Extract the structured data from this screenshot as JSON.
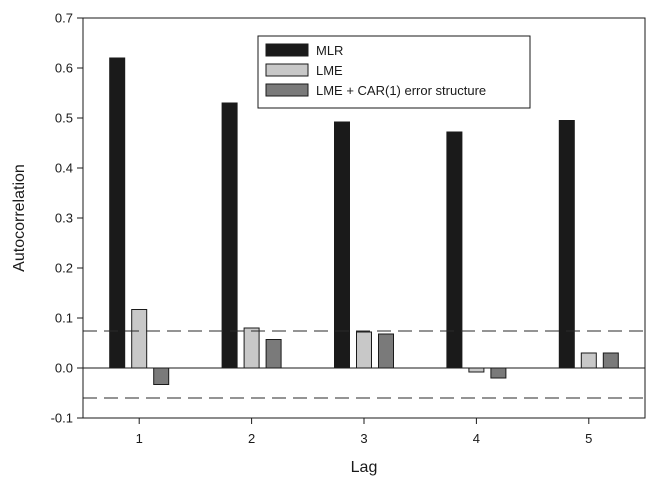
{
  "chart_data": {
    "type": "bar",
    "xlabel": "Lag",
    "ylabel": "Autocorrelation",
    "categories": [
      "1",
      "2",
      "3",
      "4",
      "5"
    ],
    "ylim": [
      -0.1,
      0.7
    ],
    "yticks": [
      "-0.1",
      "0.0",
      "0.1",
      "0.2",
      "0.3",
      "0.4",
      "0.5",
      "0.6",
      "0.7"
    ],
    "series": [
      {
        "name": "MLR",
        "color": "#1a1a1a",
        "values": [
          0.62,
          0.53,
          0.492,
          0.472,
          0.495
        ]
      },
      {
        "name": "LME",
        "color": "#c8c8c8",
        "values": [
          0.117,
          0.08,
          0.072,
          -0.008,
          0.03
        ]
      },
      {
        "name": "LME + CAR(1) error structure",
        "color": "#7a7a7a",
        "values": [
          -0.033,
          0.057,
          0.068,
          -0.02,
          0.03
        ]
      }
    ],
    "reference_lines": [
      0.074,
      -0.06
    ],
    "legend_position": "top-center",
    "grid": false
  }
}
